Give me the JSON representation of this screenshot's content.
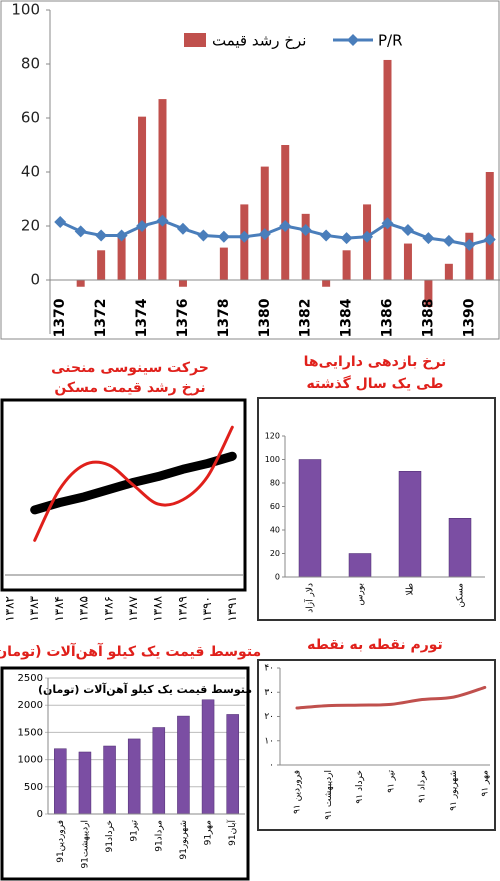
{
  "chart_data": [
    {
      "type": "bar",
      "categories": [
        "1370",
        null,
        "1372",
        null,
        "1374",
        null,
        "1376",
        null,
        "1378",
        null,
        "1380",
        null,
        "1382",
        null,
        "1384",
        null,
        "1386",
        null,
        "1388",
        null,
        "1390",
        null
      ],
      "series": [
        {
          "name": "نرخ رشد قیمت",
          "color": "#c0504d",
          "values": [
            0,
            -2.5,
            11,
            16,
            60.5,
            67,
            -2.5,
            0,
            12,
            28,
            42,
            50,
            24.5,
            -2.5,
            11,
            28,
            81.5,
            13.5,
            -10,
            6,
            17.5,
            40
          ]
        },
        {
          "name": "P/R",
          "color": "#4a7ebb",
          "type": "line",
          "values": [
            21.5,
            18,
            16.5,
            16.5,
            20,
            22,
            19,
            16.5,
            16,
            16,
            17,
            20,
            18.5,
            16.5,
            15.5,
            16,
            21,
            18.5,
            15.5,
            14.5,
            13,
            15
          ]
        }
      ],
      "ylim": [
        -20,
        100
      ],
      "yticks": [
        0,
        20,
        40,
        60,
        80,
        100
      ],
      "legend": "top"
    },
    {
      "type": "line",
      "title": "حرکت سینوسی منحنی",
      "subtitle": "نرخ رشد قیمت مسکن",
      "categories": [
        "۱۳۸۲",
        "۱۳۸۳",
        "۱۳۸۴",
        "۱۳۸۵",
        "۱۳۸۶",
        "۱۳۸۷",
        "۱۳۸۸",
        "۱۳۸۹",
        "۱۳۹۰",
        "۱۳۹۱"
      ],
      "series": [
        {
          "color": "#000000",
          "values": [
            null,
            38,
            43,
            47,
            52,
            57,
            61,
            66,
            70,
            75
          ]
        },
        {
          "color": "#e0201b",
          "values": [
            null,
            17,
            52,
            69,
            69,
            55,
            42,
            45,
            61,
            95
          ]
        }
      ],
      "ylim": [
        0,
        100
      ]
    },
    {
      "type": "bar",
      "title": "نرخ بازدهی دارایی‌ها",
      "subtitle": "طی یک سال گذشته",
      "categories": [
        "دلار آزاد",
        "بورس",
        "طلا",
        "مسکن"
      ],
      "values": [
        100,
        20,
        90,
        50
      ],
      "color": "#7b4ea3",
      "ylim": [
        0,
        120
      ],
      "yticks": [
        0,
        20,
        40,
        60,
        80,
        100,
        120
      ]
    },
    {
      "type": "bar",
      "title": "متوسط قیمت یک کیلو آهن‌آلات (تومان)",
      "inner_title": "متوسط قیمت یک کیلو آهن‌آلات (تومان)",
      "categories": [
        "91فروردین",
        "91اردیبهشت",
        "91خرداد",
        "91تیر",
        "91مرداد",
        "91شهریور",
        "91مهر",
        "91آبان"
      ],
      "values": [
        1200,
        1140,
        1250,
        1380,
        1590,
        1800,
        2100,
        1830
      ],
      "color": "#7b4ea3",
      "ylim": [
        0,
        2500
      ],
      "yticks": [
        0,
        500,
        1000,
        1500,
        2000,
        2500
      ],
      "grid": true
    },
    {
      "type": "line",
      "title": "تورم نقطه به نقطه",
      "categories": [
        "فروردین ۹۱",
        "اردیبهشت ۹۱",
        "خرداد ۹۱",
        "تیر ۹۱",
        "مرداد ۹۱",
        "شهریور ۹۱",
        "مهر ۹۱"
      ],
      "values": [
        23.5,
        24.5,
        24.7,
        25,
        27,
        28,
        32
      ],
      "color": "#c0504d",
      "ylim": [
        0,
        40
      ],
      "yticks": [
        {
          "value": 0,
          "label": "۰"
        },
        {
          "value": 10,
          "label": "۱۰"
        },
        {
          "value": 20,
          "label": "۲۰"
        },
        {
          "value": 30,
          "label": "۳۰"
        },
        {
          "value": 40,
          "label": "۴۰"
        }
      ]
    }
  ]
}
